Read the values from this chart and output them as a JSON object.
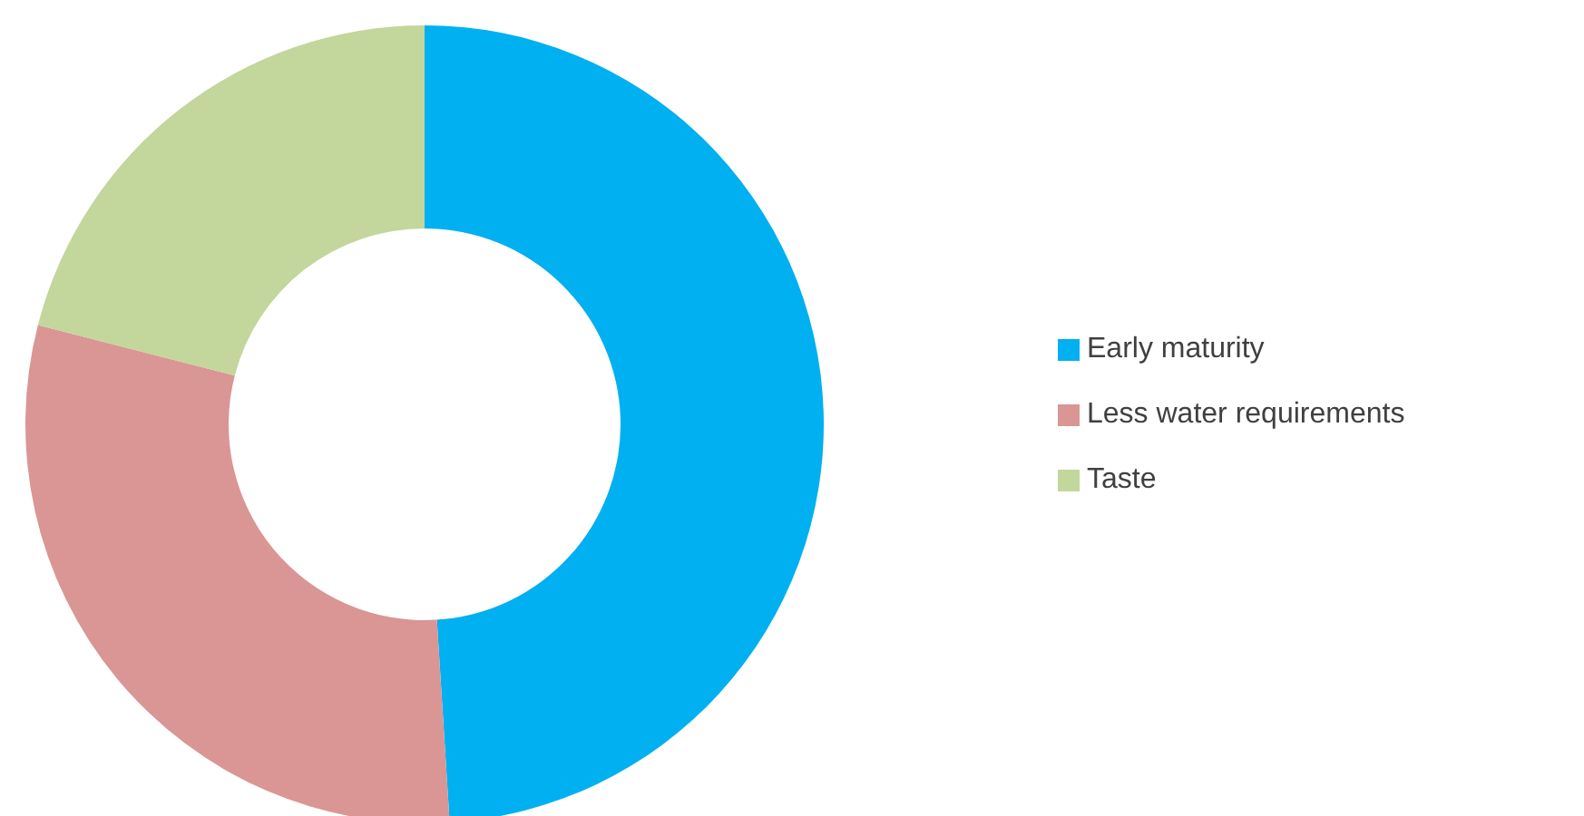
{
  "chart_data": {
    "type": "donut",
    "categories": [
      "Early maturity",
      "Less water requirements",
      "Taste"
    ],
    "values": [
      49,
      30,
      21
    ],
    "colors": [
      "#00b0f0",
      "#d99694",
      "#c3d69b"
    ],
    "legend": "right"
  }
}
